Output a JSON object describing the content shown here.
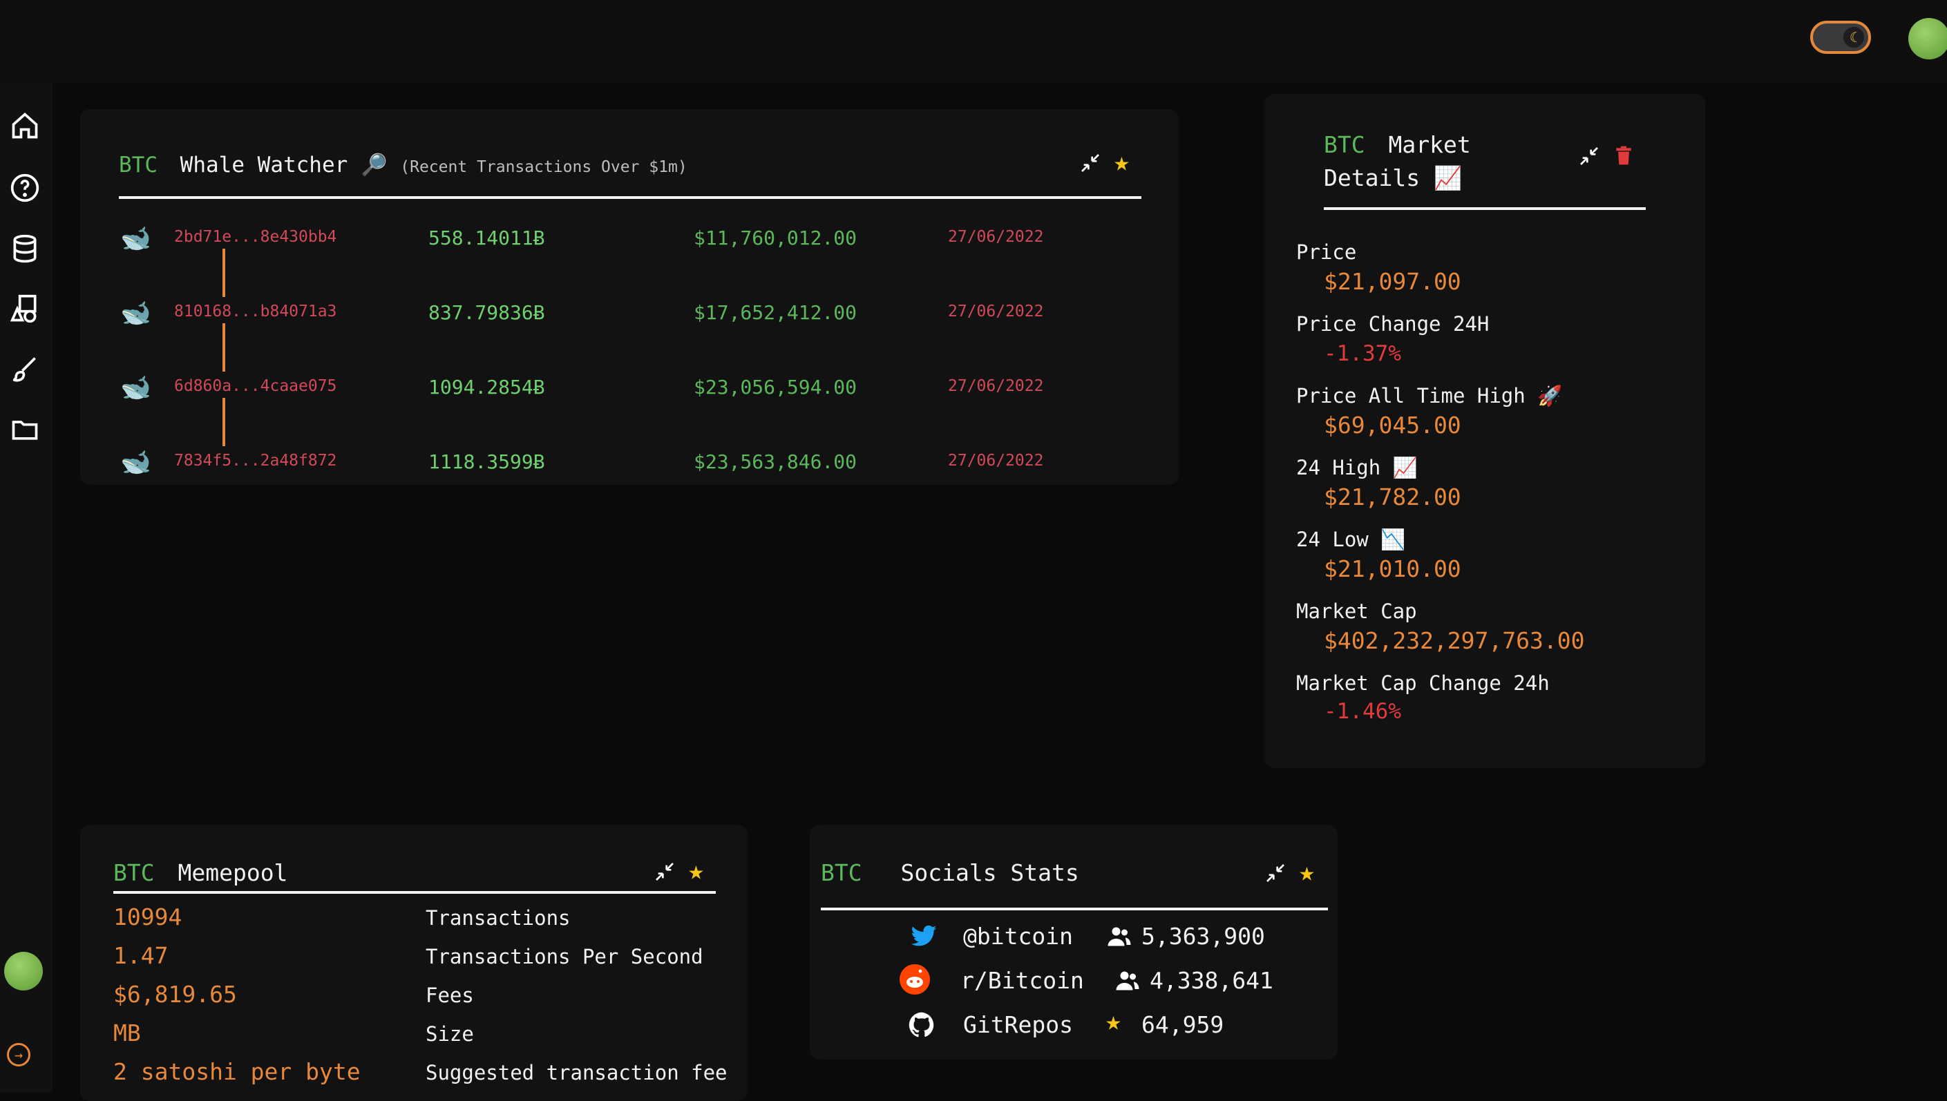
{
  "theme": {
    "accent": "#e6883a",
    "coin_color": "#5bb85b",
    "negative": "#e23b3b",
    "star": "#f5c518"
  },
  "sidebar": {
    "items": [
      {
        "icon": "home-icon"
      },
      {
        "icon": "help-icon"
      },
      {
        "icon": "database-icon"
      },
      {
        "icon": "shapes-icon"
      },
      {
        "icon": "brush-icon"
      },
      {
        "icon": "folder-icon"
      }
    ]
  },
  "whale": {
    "coin": "BTC",
    "title": "Whale Watcher",
    "emoji": "🔎",
    "subtitle": "(Recent Transactions Over $1m)",
    "rows": [
      {
        "hash": "2bd71e...8e430bb4",
        "amount": "558.14011Ƀ",
        "usd": "$11,760,012.00",
        "date": "27/06/2022"
      },
      {
        "hash": "810168...b84071a3",
        "amount": "837.79836Ƀ",
        "usd": "$17,652,412.00",
        "date": "27/06/2022"
      },
      {
        "hash": "6d860a...4caae075",
        "amount": "1094.2854Ƀ",
        "usd": "$23,056,594.00",
        "date": "27/06/2022"
      },
      {
        "hash": "7834f5...2a48f872",
        "amount": "1118.3599Ƀ",
        "usd": "$23,563,846.00",
        "date": "27/06/2022"
      }
    ]
  },
  "market": {
    "coin": "BTC",
    "title_line1": "Market",
    "title_line2": "Details",
    "title_emoji": "📈",
    "price_label": "Price",
    "price": "$21,097.00",
    "change24_label": "Price Change 24H",
    "change24": "-1.37%",
    "ath_label": "Price All Time High",
    "ath_emoji": "🚀",
    "ath": "$69,045.00",
    "high_label": "24 High",
    "high_emoji": "📈",
    "high": "$21,782.00",
    "low_label": "24 Low",
    "low_emoji": "📉",
    "low": "$21,010.00",
    "cap_label": "Market Cap",
    "cap": "$402,232,297,763.00",
    "cap_change_label": "Market Cap Change 24h",
    "cap_change": "-1.46%"
  },
  "memepool": {
    "coin": "BTC",
    "title": "Memepool",
    "rows": [
      {
        "value": "10994",
        "label": "Transactions"
      },
      {
        "value": "1.47",
        "label": "Transactions Per Second"
      },
      {
        "value": "$6,819.65",
        "label": "Fees"
      },
      {
        "value": "MB",
        "label": "Size"
      },
      {
        "value": "2 satoshi per byte",
        "label": "Suggested transaction fee"
      }
    ]
  },
  "socials": {
    "coin": "BTC",
    "title": "Socials Stats",
    "rows": [
      {
        "name": "@bitcoin",
        "count": "5,363,900",
        "icon": "twitter-icon",
        "count_icon": "users-icon"
      },
      {
        "name": "r/Bitcoin",
        "count": "4,338,641",
        "icon": "reddit-icon",
        "count_icon": "users-icon"
      },
      {
        "name": "GitRepos",
        "count": "64,959",
        "icon": "github-icon",
        "count_icon": "star-icon"
      }
    ]
  }
}
